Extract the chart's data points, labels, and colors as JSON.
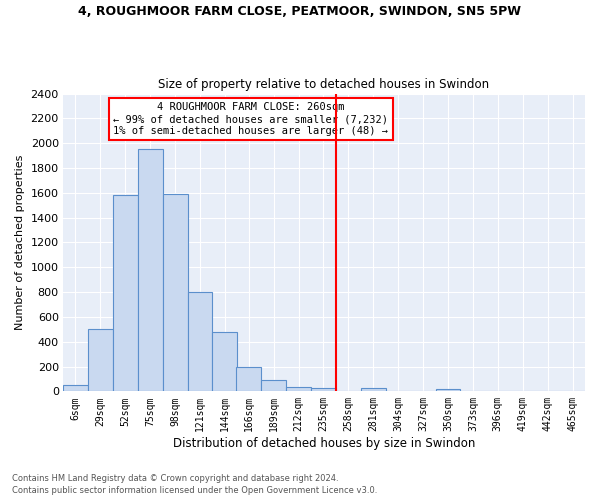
{
  "title1": "4, ROUGHMOOR FARM CLOSE, PEATMOOR, SWINDON, SN5 5PW",
  "title2": "Size of property relative to detached houses in Swindon",
  "xlabel": "Distribution of detached houses by size in Swindon",
  "ylabel": "Number of detached properties",
  "footnote1": "Contains HM Land Registry data © Crown copyright and database right 2024.",
  "footnote2": "Contains public sector information licensed under the Open Government Licence v3.0.",
  "bin_starts": [
    6,
    29,
    52,
    75,
    98,
    121,
    144,
    166,
    189,
    212,
    235,
    258,
    281,
    304,
    327,
    350,
    373,
    396,
    419,
    442,
    465
  ],
  "bin_labels": [
    "6sqm",
    "29sqm",
    "52sqm",
    "75sqm",
    "98sqm",
    "121sqm",
    "144sqm",
    "166sqm",
    "189sqm",
    "212sqm",
    "235sqm",
    "258sqm",
    "281sqm",
    "304sqm",
    "327sqm",
    "350sqm",
    "373sqm",
    "396sqm",
    "419sqm",
    "442sqm",
    "465sqm"
  ],
  "bar_heights": [
    55,
    500,
    1580,
    1950,
    1590,
    800,
    475,
    195,
    90,
    35,
    30,
    0,
    30,
    0,
    0,
    20,
    0,
    0,
    0,
    0,
    0
  ],
  "bar_color": "#c9d9f0",
  "bar_edgecolor": "#5b8fcc",
  "vline_x": 258,
  "vline_color": "red",
  "annotation_title": "4 ROUGHMOOR FARM CLOSE: 260sqm",
  "annotation_line1": "← 99% of detached houses are smaller (7,232)",
  "annotation_line2": "1% of semi-detached houses are larger (48) →",
  "xlim_min": 6,
  "xlim_max": 488,
  "ylim_max": 2400,
  "bin_width": 23,
  "background_color": "#e8eef8",
  "grid_color": "#ffffff",
  "yticks": [
    0,
    200,
    400,
    600,
    800,
    1000,
    1200,
    1400,
    1600,
    1800,
    2000,
    2200,
    2400
  ]
}
